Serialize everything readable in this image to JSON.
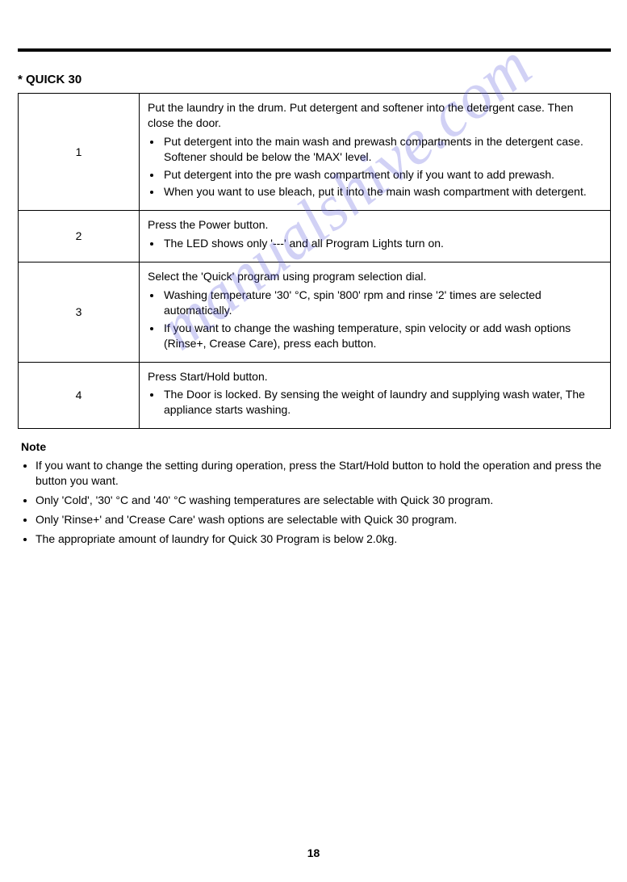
{
  "title": "* QUICK 30",
  "steps": [
    {
      "num": "1",
      "intro": "Put the laundry in the drum. Put detergent and softener into the detergent case. Then close the door.",
      "bullets": [
        "Put detergent into the main wash and prewash compartments in the detergent case. Softener should be below the 'MAX' level.",
        "Put detergent into the pre wash compartment only if you want to add prewash.",
        "When you want to use bleach, put it into the main wash compartment with detergent."
      ]
    },
    {
      "num": "2",
      "intro": "Press the Power button.",
      "bullets": [
        "The LED shows only '---' and all Program Lights turn on."
      ]
    },
    {
      "num": "3",
      "intro": "Select the 'Quick' program using program selection dial.",
      "bullets": [
        "Washing temperature '30' °C, spin '800' rpm and rinse '2' times are selected automatically.",
        "If you want to change the washing temperature, spin velocity or add wash options (Rinse+, Crease Care), press each button."
      ]
    },
    {
      "num": "4",
      "intro": "Press Start/Hold button.",
      "bullets": [
        "The Door is locked. By sensing the weight of laundry and supplying wash water, The appliance starts washing."
      ]
    }
  ],
  "note_heading": "Note",
  "notes": [
    "If you want to change the setting during operation, press the Start/Hold button to hold the operation and press the button you want.",
    "Only 'Cold', '30' °C and '40' °C washing temperatures are selectable with Quick 30 program.",
    "Only 'Rinse+' and 'Crease Care' wash options are selectable with Quick 30 program.",
    "The appropriate amount of laundry for Quick 30 Program is below 2.0kg."
  ],
  "page_number": "18",
  "watermark": "manualshive.com"
}
